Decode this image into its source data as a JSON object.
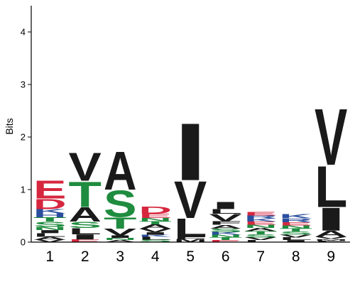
{
  "chart_data": {
    "type": "sequence-logo",
    "ylabel": "Bits",
    "ylim": [
      0,
      4.5
    ],
    "yticks": [
      "0",
      "1",
      "2",
      "3",
      "4"
    ],
    "positions": [
      "1",
      "2",
      "3",
      "4",
      "5",
      "6",
      "7",
      "8",
      "9"
    ],
    "colors": {
      "acidic": "#d6273f",
      "basic": "#2a4e9e",
      "polar": "#1f8c3f",
      "hydrophobic": "#1a1a1a"
    },
    "stacks": [
      [
        {
          "letter": "V",
          "bits": 0.05,
          "group": "hydrophobic"
        },
        {
          "letter": "A",
          "bits": 0.05,
          "group": "hydrophobic"
        },
        {
          "letter": "L",
          "bits": 0.07,
          "group": "hydrophobic"
        },
        {
          "letter": "I",
          "bits": 0.06,
          "group": "hydrophobic"
        },
        {
          "letter": "N",
          "bits": 0.06,
          "group": "polar"
        },
        {
          "letter": "S",
          "bits": 0.1,
          "group": "polar"
        },
        {
          "letter": "T",
          "bits": 0.08,
          "group": "polar"
        },
        {
          "letter": "H",
          "bits": 0.08,
          "group": "basic"
        },
        {
          "letter": "K",
          "bits": 0.08,
          "group": "basic"
        },
        {
          "letter": "D",
          "bits": 0.2,
          "group": "acidic"
        },
        {
          "letter": "E",
          "bits": 0.35,
          "group": "acidic"
        }
      ],
      [
        {
          "letter": "E",
          "bits": 0.05,
          "group": "acidic"
        },
        {
          "letter": "I",
          "bits": 0.1,
          "group": "hydrophobic"
        },
        {
          "letter": "L",
          "bits": 0.12,
          "group": "hydrophobic"
        },
        {
          "letter": "S",
          "bits": 0.12,
          "group": "polar"
        },
        {
          "letter": "A",
          "bits": 0.28,
          "group": "hydrophobic"
        },
        {
          "letter": "T",
          "bits": 0.5,
          "group": "polar"
        },
        {
          "letter": "V",
          "bits": 0.55,
          "group": "hydrophobic"
        }
      ],
      [
        {
          "letter": "A",
          "bits": 0.04,
          "group": "hydrophobic"
        },
        {
          "letter": "N",
          "bits": 0.04,
          "group": "polar"
        },
        {
          "letter": "I",
          "bits": 0.05,
          "group": "hydrophobic"
        },
        {
          "letter": "V",
          "bits": 0.13,
          "group": "hydrophobic"
        },
        {
          "letter": "T",
          "bits": 0.22,
          "group": "polar"
        },
        {
          "letter": "S",
          "bits": 0.52,
          "group": "polar"
        },
        {
          "letter": "A",
          "bits": 0.75,
          "group": "hydrophobic"
        }
      ],
      [
        {
          "letter": "S",
          "bits": 0.05,
          "group": "polar"
        },
        {
          "letter": "L",
          "bits": 0.05,
          "group": "hydrophobic"
        },
        {
          "letter": "K",
          "bits": 0.04,
          "group": "basic"
        },
        {
          "letter": "I",
          "bits": 0.05,
          "group": "hydrophobic"
        },
        {
          "letter": "V",
          "bits": 0.07,
          "group": "hydrophobic"
        },
        {
          "letter": "A",
          "bits": 0.08,
          "group": "hydrophobic"
        },
        {
          "letter": "T",
          "bits": 0.06,
          "group": "polar"
        },
        {
          "letter": "N",
          "bits": 0.06,
          "group": "polar"
        },
        {
          "letter": "E",
          "bits": 0.08,
          "group": "acidic"
        },
        {
          "letter": "D",
          "bits": 0.14,
          "group": "acidic"
        }
      ],
      [
        {
          "letter": "M",
          "bits": 0.06,
          "group": "hydrophobic"
        },
        {
          "letter": "F",
          "bits": 0.04,
          "group": "hydrophobic"
        },
        {
          "letter": "L",
          "bits": 0.36,
          "group": "hydrophobic"
        },
        {
          "letter": "V",
          "bits": 0.72,
          "group": "hydrophobic"
        },
        {
          "letter": "I",
          "bits": 1.12,
          "group": "hydrophobic"
        }
      ],
      [
        {
          "letter": "E",
          "bits": 0.04,
          "group": "acidic"
        },
        {
          "letter": "T",
          "bits": 0.05,
          "group": "polar"
        },
        {
          "letter": "N",
          "bits": 0.05,
          "group": "polar"
        },
        {
          "letter": "K",
          "bits": 0.05,
          "group": "basic"
        },
        {
          "letter": "S",
          "bits": 0.07,
          "group": "polar"
        },
        {
          "letter": "A",
          "bits": 0.07,
          "group": "hydrophobic"
        },
        {
          "letter": "F",
          "bits": 0.07,
          "group": "hydrophobic"
        },
        {
          "letter": "V",
          "bits": 0.14,
          "group": "hydrophobic"
        },
        {
          "letter": "L",
          "bits": 0.09,
          "group": "hydrophobic"
        },
        {
          "letter": "I",
          "bits": 0.14,
          "group": "hydrophobic"
        }
      ],
      [
        {
          "letter": "L",
          "bits": 0.04,
          "group": "hydrophobic"
        },
        {
          "letter": "V",
          "bits": 0.05,
          "group": "hydrophobic"
        },
        {
          "letter": "S",
          "bits": 0.06,
          "group": "polar"
        },
        {
          "letter": "T",
          "bits": 0.06,
          "group": "polar"
        },
        {
          "letter": "A",
          "bits": 0.06,
          "group": "hydrophobic"
        },
        {
          "letter": "N",
          "bits": 0.06,
          "group": "polar"
        },
        {
          "letter": "E",
          "bits": 0.06,
          "group": "acidic"
        },
        {
          "letter": "K",
          "bits": 0.06,
          "group": "basic"
        },
        {
          "letter": "R",
          "bits": 0.06,
          "group": "basic"
        },
        {
          "letter": "E",
          "bits": 0.07,
          "group": "acidic"
        }
      ],
      [
        {
          "letter": "I",
          "bits": 0.04,
          "group": "hydrophobic"
        },
        {
          "letter": "L",
          "bits": 0.05,
          "group": "hydrophobic"
        },
        {
          "letter": "V",
          "bits": 0.05,
          "group": "hydrophobic"
        },
        {
          "letter": "S",
          "bits": 0.06,
          "group": "polar"
        },
        {
          "letter": "T",
          "bits": 0.06,
          "group": "polar"
        },
        {
          "letter": "N",
          "bits": 0.06,
          "group": "polar"
        },
        {
          "letter": "E",
          "bits": 0.06,
          "group": "acidic"
        },
        {
          "letter": "R",
          "bits": 0.07,
          "group": "basic"
        },
        {
          "letter": "K",
          "bits": 0.08,
          "group": "basic"
        }
      ],
      [
        {
          "letter": "F",
          "bits": 0.03,
          "group": "hydrophobic"
        },
        {
          "letter": "M",
          "bits": 0.03,
          "group": "hydrophobic"
        },
        {
          "letter": "V",
          "bits": 0.04,
          "group": "hydrophobic"
        },
        {
          "letter": "A",
          "bits": 0.12,
          "group": "hydrophobic"
        },
        {
          "letter": "I",
          "bits": 0.45,
          "group": "hydrophobic"
        },
        {
          "letter": "L",
          "bits": 0.8,
          "group": "hydrophobic"
        },
        {
          "letter": "V",
          "bits": 1.1,
          "group": "hydrophobic"
        }
      ]
    ]
  }
}
